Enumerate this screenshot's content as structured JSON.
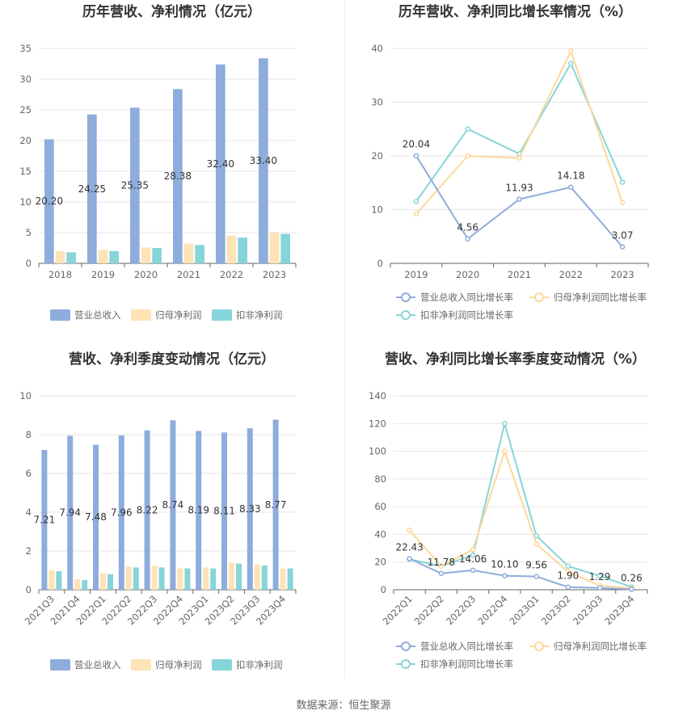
{
  "chart_data": [
    {
      "type": "bar",
      "title": "历年营收、净利情况（亿元）",
      "categories": [
        "2018",
        "2019",
        "2020",
        "2021",
        "2022",
        "2023"
      ],
      "ylim": [
        0,
        35
      ],
      "yticks": [
        0,
        5,
        10,
        15,
        20,
        25,
        30,
        35
      ],
      "series": [
        {
          "name": "营业总收入",
          "color": "#8eacdc",
          "values": [
            20.2,
            24.25,
            25.35,
            28.38,
            32.4,
            33.4
          ],
          "labels": [
            "20.20",
            "24.25",
            "25.35",
            "28.38",
            "32.40",
            "33.40"
          ]
        },
        {
          "name": "归母净利润",
          "color": "#fde3b5",
          "values": [
            2.0,
            2.2,
            2.6,
            3.2,
            4.5,
            5.0
          ]
        },
        {
          "name": "扣非净利润",
          "color": "#86d5d8",
          "values": [
            1.8,
            2.0,
            2.5,
            3.0,
            4.2,
            4.8
          ]
        }
      ],
      "legend": "bottom"
    },
    {
      "type": "line",
      "title": "历年营收、净利同比增长率情况（%）",
      "categories": [
        "2019",
        "2020",
        "2021",
        "2022",
        "2023"
      ],
      "ylim": [
        0,
        40
      ],
      "yticks": [
        0,
        10,
        20,
        30,
        40
      ],
      "series": [
        {
          "name": "营业总收入同比增长率",
          "color": "#8eacdc",
          "values": [
            20.04,
            4.56,
            11.93,
            14.18,
            3.07
          ],
          "labels": [
            "20.04",
            "4.56",
            "11.93",
            "14.18",
            "3.07"
          ]
        },
        {
          "name": "归母净利润同比增长率",
          "color": "#fdd89a",
          "values": [
            9.2,
            20.0,
            19.6,
            39.5,
            11.3
          ]
        },
        {
          "name": "扣非净利润同比增长率",
          "color": "#86d5d8",
          "values": [
            11.5,
            25.0,
            20.4,
            37.2,
            15.1
          ]
        }
      ],
      "legend": "bottom"
    },
    {
      "type": "bar",
      "title": "营收、净利季度变动情况（亿元）",
      "categories": [
        "2021Q3",
        "2021Q4",
        "2022Q1",
        "2022Q2",
        "2022Q3",
        "2022Q4",
        "2023Q1",
        "2023Q2",
        "2023Q3",
        "2023Q4"
      ],
      "ylim": [
        0,
        10
      ],
      "yticks": [
        0,
        2,
        4,
        6,
        8,
        10
      ],
      "series": [
        {
          "name": "营业总收入",
          "color": "#8eacdc",
          "values": [
            7.21,
            7.94,
            7.48,
            7.96,
            8.22,
            8.74,
            8.19,
            8.11,
            8.33,
            8.77
          ],
          "labels": [
            "7.21",
            "7.94",
            "7.48",
            "7.96",
            "8.22",
            "8.74",
            "8.19",
            "8.11",
            "8.33",
            "8.77"
          ]
        },
        {
          "name": "归母净利润",
          "color": "#fde3b5",
          "values": [
            1.0,
            0.55,
            0.85,
            1.2,
            1.25,
            1.1,
            1.15,
            1.4,
            1.3,
            1.1
          ]
        },
        {
          "name": "扣非净利润",
          "color": "#86d5d8",
          "values": [
            0.95,
            0.5,
            0.8,
            1.15,
            1.15,
            1.1,
            1.1,
            1.35,
            1.25,
            1.1
          ]
        }
      ],
      "legend": "bottom"
    },
    {
      "type": "line",
      "title": "营收、净利同比增长率季度变动情况（%）",
      "categories": [
        "2022Q1",
        "2022Q2",
        "2022Q3",
        "2022Q4",
        "2023Q1",
        "2023Q2",
        "2023Q3",
        "2023Q4"
      ],
      "ylim": [
        0,
        140
      ],
      "yticks": [
        0,
        20,
        40,
        60,
        80,
        100,
        120,
        140
      ],
      "series": [
        {
          "name": "营业总收入同比增长率",
          "color": "#8eacdc",
          "values": [
            22.43,
            11.78,
            14.06,
            10.1,
            9.56,
            1.9,
            1.29,
            0.26
          ],
          "labels": [
            "22.43",
            "11.78",
            "14.06",
            "10.10",
            "9.56",
            "1.90",
            "1.29",
            "0.26"
          ]
        },
        {
          "name": "归母净利润同比增长率",
          "color": "#fdd89a",
          "values": [
            43,
            17,
            29,
            100,
            33,
            13,
            3,
            1
          ]
        },
        {
          "name": "扣非净利润同比增长率",
          "color": "#86d5d8",
          "values": [
            22,
            17,
            25,
            120,
            39,
            17,
            10,
            2
          ]
        }
      ],
      "legend": "bottom"
    }
  ],
  "footer": {
    "source": "数据来源：恒生聚源"
  }
}
